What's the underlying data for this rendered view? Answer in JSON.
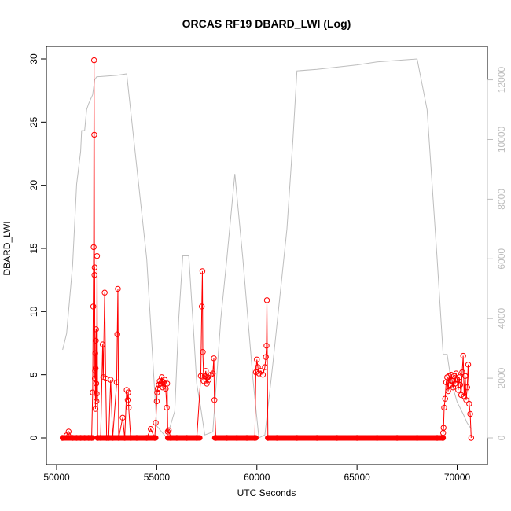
{
  "chart_data": {
    "type": "line",
    "title": "ORCAS RF19 DBARD_LWI (Log)",
    "xlabel": "UTC Seconds",
    "ylabel": "DBARD_LWI",
    "xlim": [
      50000,
      71000
    ],
    "ylim": [
      0,
      30
    ],
    "y2lim": [
      0,
      12700
    ],
    "x_ticks": [
      "50000",
      "55000",
      "60000",
      "65000",
      "70000"
    ],
    "y_ticks": [
      "0",
      "5",
      "10",
      "15",
      "20",
      "25",
      "30"
    ],
    "y2_ticks": [
      "0",
      "2000",
      "4000",
      "6000",
      "8000",
      "10000",
      "12000"
    ],
    "colors": {
      "series": "#ff0000",
      "altitude": "#bdbdbd",
      "axes": "#000000"
    },
    "grid": false,
    "series": [
      {
        "axis": "left",
        "style": "points-with-lines",
        "points": [
          [
            50300,
            0
          ],
          [
            50500,
            0.2
          ],
          [
            50600,
            0.5
          ],
          [
            50800,
            0
          ],
          [
            51000,
            0
          ],
          [
            51200,
            0
          ],
          [
            51400,
            0
          ],
          [
            51600,
            0
          ],
          [
            51750,
            0
          ],
          [
            51800,
            3.6
          ],
          [
            51830,
            10.4
          ],
          [
            51850,
            15.1
          ],
          [
            51870,
            29.9
          ],
          [
            51880,
            24.0
          ],
          [
            51890,
            12.9
          ],
          [
            51900,
            13.5
          ],
          [
            51910,
            4.7
          ],
          [
            51920,
            5.3
          ],
          [
            51930,
            6.7
          ],
          [
            51940,
            2.3
          ],
          [
            51950,
            5.5
          ],
          [
            51960,
            7.7
          ],
          [
            51970,
            8.6
          ],
          [
            51980,
            4.3
          ],
          [
            51990,
            2.9
          ],
          [
            52000,
            3.5
          ],
          [
            52020,
            14.4
          ],
          [
            52050,
            0
          ],
          [
            52200,
            0
          ],
          [
            52300,
            7.4
          ],
          [
            52330,
            4.8
          ],
          [
            52400,
            11.5
          ],
          [
            52450,
            4.7
          ],
          [
            52500,
            0
          ],
          [
            52600,
            0
          ],
          [
            52700,
            4.6
          ],
          [
            52800,
            0
          ],
          [
            53000,
            4.4
          ],
          [
            53030,
            8.2
          ],
          [
            53060,
            11.8
          ],
          [
            53100,
            0
          ],
          [
            53300,
            1.6
          ],
          [
            53400,
            0
          ],
          [
            53500,
            3.8
          ],
          [
            53550,
            3.0
          ],
          [
            53580,
            3.6
          ],
          [
            53600,
            2.4
          ],
          [
            53700,
            0
          ],
          [
            54000,
            0
          ],
          [
            54500,
            0
          ],
          [
            54700,
            0.7
          ],
          [
            54900,
            0
          ],
          [
            54950,
            1.2
          ],
          [
            55000,
            2.9
          ],
          [
            55020,
            3.6
          ],
          [
            55050,
            3.9
          ],
          [
            55100,
            4.2
          ],
          [
            55150,
            4.5
          ],
          [
            55200,
            4.3
          ],
          [
            55250,
            4.8
          ],
          [
            55300,
            4.0
          ],
          [
            55350,
            4.4
          ],
          [
            55400,
            4.6
          ],
          [
            55450,
            3.9
          ],
          [
            55500,
            2.4
          ],
          [
            55520,
            4.3
          ],
          [
            55550,
            0.5
          ],
          [
            55600,
            0.6
          ],
          [
            55700,
            0
          ],
          [
            56000,
            0
          ],
          [
            56500,
            0
          ],
          [
            57000,
            0
          ],
          [
            57200,
            4.9
          ],
          [
            57250,
            10.4
          ],
          [
            57280,
            13.2
          ],
          [
            57300,
            6.8
          ],
          [
            57350,
            4.5
          ],
          [
            57400,
            4.9
          ],
          [
            57450,
            5.3
          ],
          [
            57500,
            4.3
          ],
          [
            57550,
            4.8
          ],
          [
            57600,
            4.6
          ],
          [
            57700,
            5.0
          ],
          [
            57800,
            5.1
          ],
          [
            57850,
            6.3
          ],
          [
            57880,
            3.0
          ],
          [
            57950,
            0
          ],
          [
            58500,
            0
          ],
          [
            59000,
            0
          ],
          [
            59500,
            0
          ],
          [
            59900,
            0
          ],
          [
            59950,
            5.2
          ],
          [
            60000,
            6.2
          ],
          [
            60050,
            5.6
          ],
          [
            60100,
            5.1
          ],
          [
            60200,
            5.3
          ],
          [
            60300,
            5.0
          ],
          [
            60400,
            5.6
          ],
          [
            60450,
            6.4
          ],
          [
            60480,
            7.3
          ],
          [
            60500,
            10.9
          ],
          [
            60550,
            0
          ],
          [
            61000,
            0
          ],
          [
            62000,
            0
          ],
          [
            63000,
            0
          ],
          [
            64000,
            0
          ],
          [
            65000,
            0
          ],
          [
            66000,
            0
          ],
          [
            67000,
            0
          ],
          [
            68000,
            0
          ],
          [
            69000,
            0
          ],
          [
            69280,
            0
          ],
          [
            69300,
            0.4
          ],
          [
            69320,
            0.8
          ],
          [
            69350,
            2.4
          ],
          [
            69400,
            3.1
          ],
          [
            69450,
            4.4
          ],
          [
            69500,
            4.8
          ],
          [
            69550,
            3.7
          ],
          [
            69600,
            4.9
          ],
          [
            69650,
            4.2
          ],
          [
            69700,
            5.0
          ],
          [
            69750,
            4.5
          ],
          [
            69800,
            4.0
          ],
          [
            69850,
            4.9
          ],
          [
            69900,
            4.3
          ],
          [
            69950,
            5.1
          ],
          [
            70000,
            4.6
          ],
          [
            70050,
            3.8
          ],
          [
            70100,
            4.8
          ],
          [
            70150,
            4.2
          ],
          [
            70200,
            3.4
          ],
          [
            70250,
            5.2
          ],
          [
            70300,
            6.5
          ],
          [
            70350,
            3.3
          ],
          [
            70400,
            4.9
          ],
          [
            70450,
            3.0
          ],
          [
            70500,
            4.0
          ],
          [
            70550,
            5.8
          ],
          [
            70600,
            2.7
          ],
          [
            70650,
            1.9
          ],
          [
            70700,
            0
          ]
        ]
      },
      {
        "axis": "right",
        "style": "line",
        "points": [
          [
            50300,
            2950
          ],
          [
            50500,
            3500
          ],
          [
            50800,
            5800
          ],
          [
            51000,
            8500
          ],
          [
            51200,
            9600
          ],
          [
            51250,
            10300
          ],
          [
            51400,
            10300
          ],
          [
            51500,
            11000
          ],
          [
            51600,
            11200
          ],
          [
            51800,
            11500
          ],
          [
            51900,
            12000
          ],
          [
            52000,
            12100
          ],
          [
            53000,
            12150
          ],
          [
            53500,
            12200
          ],
          [
            54500,
            6000
          ],
          [
            55000,
            400
          ],
          [
            55500,
            0
          ],
          [
            55900,
            900
          ],
          [
            56100,
            4000
          ],
          [
            56300,
            6100
          ],
          [
            56600,
            6100
          ],
          [
            56800,
            4000
          ],
          [
            57000,
            1800
          ],
          [
            57200,
            1000
          ],
          [
            57400,
            100
          ],
          [
            57800,
            200
          ],
          [
            58200,
            4000
          ],
          [
            58500,
            6000
          ],
          [
            58900,
            8850
          ],
          [
            59300,
            6000
          ],
          [
            59800,
            2000
          ],
          [
            60100,
            0
          ],
          [
            60400,
            100
          ],
          [
            60800,
            2500
          ],
          [
            61500,
            7000
          ],
          [
            61800,
            10000
          ],
          [
            62000,
            12300
          ],
          [
            63000,
            12350
          ],
          [
            65000,
            12500
          ],
          [
            66000,
            12600
          ],
          [
            67000,
            12650
          ],
          [
            68000,
            12700
          ],
          [
            68500,
            11000
          ],
          [
            69000,
            6000
          ],
          [
            69300,
            2800
          ],
          [
            69500,
            2800
          ],
          [
            69700,
            1900
          ],
          [
            70000,
            1200
          ],
          [
            70300,
            800
          ],
          [
            70500,
            500
          ],
          [
            70700,
            300
          ]
        ]
      }
    ]
  }
}
